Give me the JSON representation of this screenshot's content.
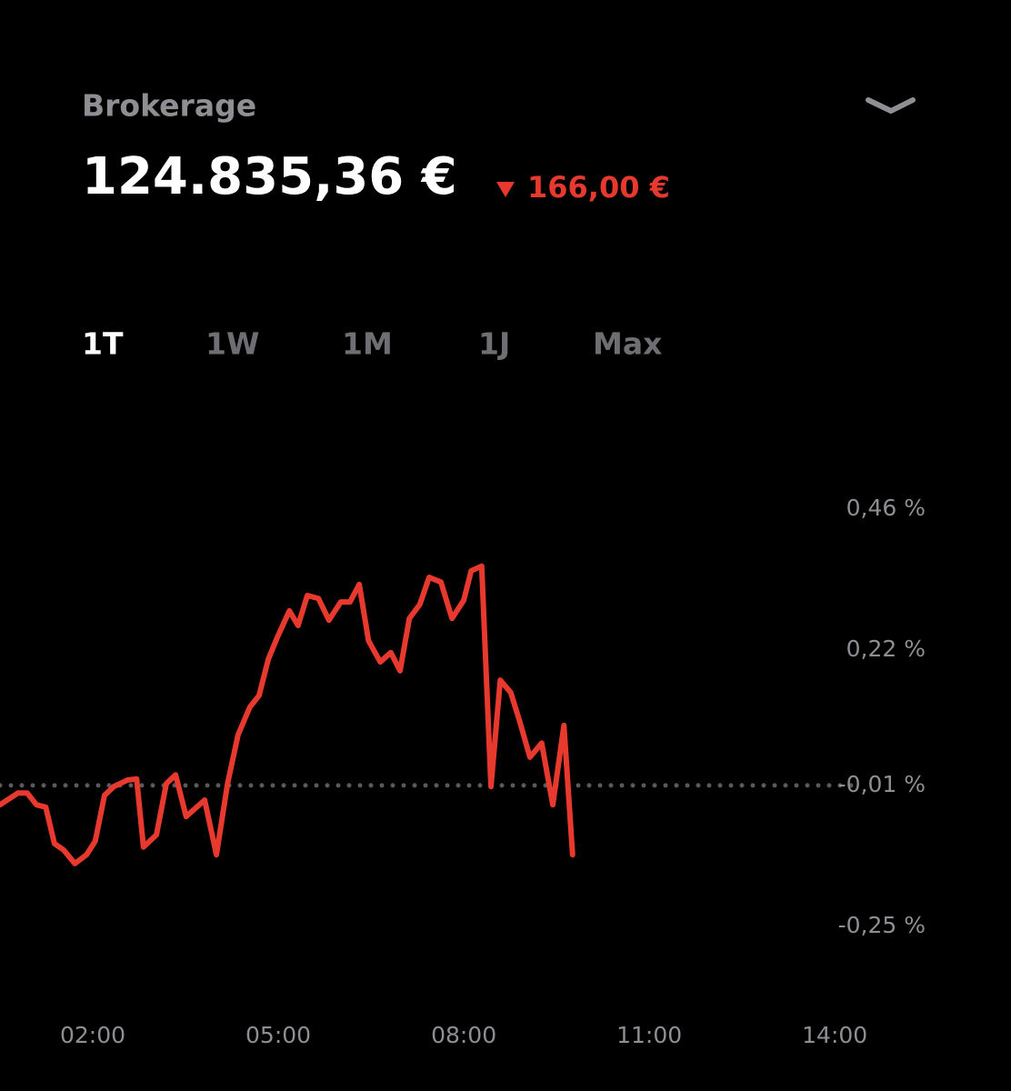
{
  "header": {
    "account": "Brokerage",
    "balance": "124.835,36 €",
    "change": "166,00 €"
  },
  "tabs": {
    "items": [
      "1T",
      "1W",
      "1M",
      "1J",
      "Max"
    ],
    "active": 0
  },
  "chart_data": {
    "type": "line",
    "color": "#e8392f",
    "x": [
      0.5,
      0.79,
      0.94,
      1.09,
      1.24,
      1.38,
      1.53,
      1.71,
      1.9,
      2.04,
      2.19,
      2.34,
      2.56,
      2.71,
      2.82,
      3.03,
      3.19,
      3.34,
      3.51,
      3.81,
      4.0,
      4.18,
      4.35,
      4.54,
      4.69,
      4.84,
      4.99,
      5.18,
      5.32,
      5.47,
      5.65,
      5.82,
      6.01,
      6.16,
      6.31,
      6.46,
      6.65,
      6.82,
      6.97,
      7.12,
      7.29,
      7.44,
      7.63,
      7.81,
      8.0,
      8.12,
      8.29,
      8.44,
      8.59,
      8.76,
      8.91,
      9.07,
      9.26,
      9.44,
      9.62,
      9.76
    ],
    "values": [
      -0.043,
      -0.023,
      -0.023,
      -0.043,
      -0.047,
      -0.109,
      -0.12,
      -0.143,
      -0.128,
      -0.105,
      -0.027,
      -0.012,
      -0.001,
      0.001,
      -0.115,
      -0.094,
      -0.007,
      0.008,
      -0.063,
      -0.035,
      -0.128,
      -0.007,
      0.076,
      0.123,
      0.143,
      0.205,
      0.243,
      0.287,
      0.262,
      0.313,
      0.308,
      0.271,
      0.302,
      0.302,
      0.332,
      0.236,
      0.2,
      0.216,
      0.185,
      0.274,
      0.298,
      0.344,
      0.336,
      0.274,
      0.305,
      0.355,
      0.363,
      -0.012,
      0.169,
      0.148,
      0.097,
      0.038,
      0.062,
      -0.043,
      0.092,
      -0.128
    ],
    "xlim": [
      0.5,
      16.85
    ],
    "xticks": [
      {
        "value": 2,
        "label": "02:00"
      },
      {
        "value": 5,
        "label": "05:00"
      },
      {
        "value": 8,
        "label": "08:00"
      },
      {
        "value": 11,
        "label": "11:00"
      },
      {
        "value": 14,
        "label": "14:00"
      }
    ],
    "ylim": [
      -0.37,
      0.58
    ],
    "yticks": [
      {
        "value": 0.46,
        "label": "0,46 %"
      },
      {
        "value": 0.22,
        "label": "0,22 %"
      },
      {
        "value": -0.01,
        "label": "-0,01 %"
      },
      {
        "value": -0.25,
        "label": "-0,25 %"
      }
    ],
    "baseline": -0.01
  }
}
